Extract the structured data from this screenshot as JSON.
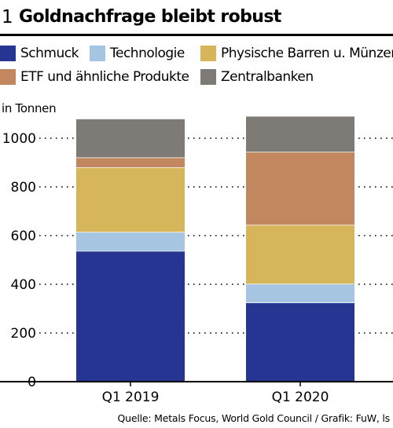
{
  "figure": {
    "number": "1",
    "title": "Goldnachfrage bleibt robust",
    "source": "Quelle: Metals Focus, World Gold Council / Grafik: FuW, ls"
  },
  "chart_data": {
    "type": "bar",
    "stacked": true,
    "title": "Goldnachfrage bleibt robust",
    "ylabel": "in Tonnen",
    "xlabel": "",
    "categories": [
      "Q1 2019",
      "Q1 2020"
    ],
    "ylim": [
      0,
      1100
    ],
    "yticks": [
      0,
      200,
      400,
      600,
      800,
      1000
    ],
    "grid": "dotted",
    "legend_position": "top",
    "series": [
      {
        "name": "Schmuck",
        "color": "#263591",
        "values": [
          537,
          325
        ]
      },
      {
        "name": "Technologie",
        "color": "#a5c5e3",
        "values": [
          78,
          77
        ]
      },
      {
        "name": "Physische Barren u. Münzen",
        "color": "#d7b55a",
        "values": [
          265,
          242
        ]
      },
      {
        "name": "ETF und ähnliche Produkte",
        "color": "#c3875f",
        "values": [
          41,
          300
        ]
      },
      {
        "name": "Zentralbanken",
        "color": "#7e7b77",
        "values": [
          157,
          145
        ]
      }
    ]
  }
}
